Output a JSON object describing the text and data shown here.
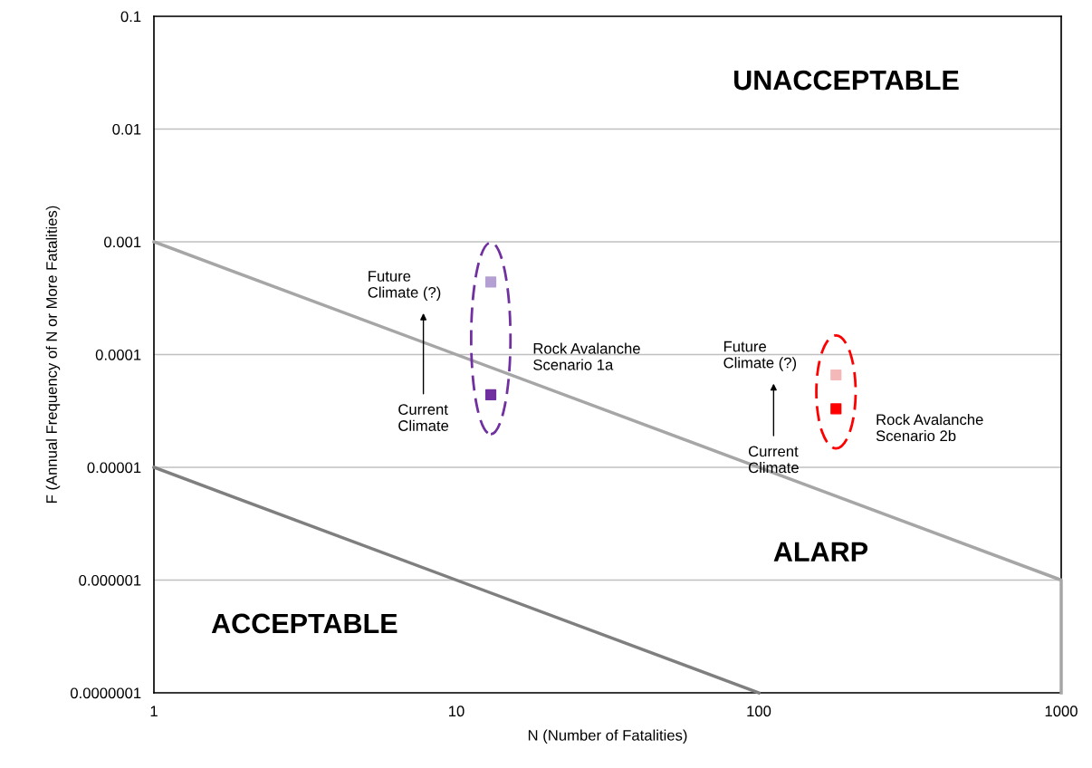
{
  "chart_data": {
    "type": "line",
    "xlabel": "N (Number of Fatalities)",
    "ylabel": "F (Annual Frequency of N or More Fatalities)",
    "log": "xy",
    "xlim": [
      1,
      1000
    ],
    "xticks": [
      1,
      10,
      100,
      1000
    ],
    "ylim": [
      1e-07,
      0.1
    ],
    "yticks": [
      {
        "value": 1e-07,
        "label": "0.0000001"
      },
      {
        "value": 1e-06,
        "label": "0.000001"
      },
      {
        "value": 1e-05,
        "label": "0.00001"
      },
      {
        "value": 0.0001,
        "label": "0.0001"
      },
      {
        "value": 0.001,
        "label": "0.001"
      },
      {
        "value": 0.01,
        "label": "0.01"
      },
      {
        "value": 0.1,
        "label": "0.1"
      }
    ],
    "grid": "y",
    "legend": false,
    "series": [
      {
        "color": "#a6a6a6",
        "x": [
          1,
          1000,
          1000
        ],
        "values": [
          0.001,
          1e-06,
          1e-07
        ]
      },
      {
        "color": "#7f7f7f",
        "x": [
          1,
          100
        ],
        "values": [
          1e-05,
          1e-07
        ]
      },
      {
        "type": "scatter",
        "marker": "square",
        "x": [
          13,
          13
        ],
        "values": [
          0.00044,
          4.4e-05
        ],
        "colors": [
          "#b4a0d2",
          "#7030a0"
        ]
      },
      {
        "type": "scatter",
        "marker": "square",
        "x": [
          180,
          180
        ],
        "values": [
          6.6e-05,
          3.3e-05
        ],
        "colors": [
          "#f4b8b8",
          "#ff0000"
        ]
      }
    ],
    "annotations": [
      "Future\nClimate (?)",
      "Current\nClimate",
      "Future\nClimate (?)",
      "Current\nClimate",
      "Rock Avalanche\nScenario 1a",
      "Rock Avalanche\nScenario 2b",
      "UNACCEPTABLE",
      "ALARP",
      "ACCEPTABLE"
    ]
  }
}
